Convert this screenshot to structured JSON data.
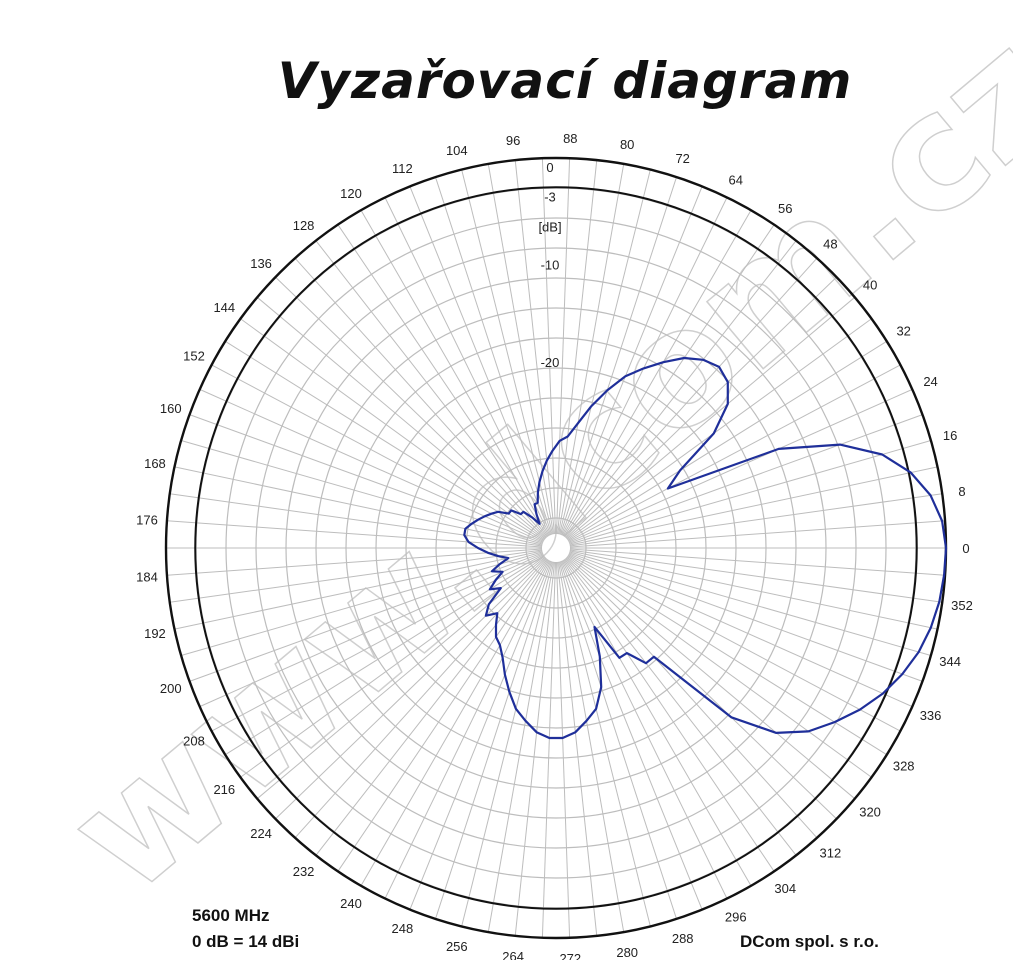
{
  "chart_data": {
    "type": "polar",
    "title": "Vyzařovací diagram",
    "radial_unit": "[dB]",
    "radial_ticks": [
      "0",
      "-3",
      "-10",
      "-20"
    ],
    "radial_range": [
      -40,
      0
    ],
    "angle_ticks": [
      "0",
      "8",
      "16",
      "24",
      "32",
      "40",
      "48",
      "56",
      "64",
      "72",
      "80",
      "88",
      "96",
      "104",
      "112",
      "120",
      "128",
      "136",
      "144",
      "152",
      "160",
      "168",
      "176",
      "184",
      "192",
      "200",
      "208",
      "216",
      "224",
      "232",
      "240",
      "248",
      "256",
      "264",
      "272",
      "280",
      "288",
      "296",
      "304",
      "312",
      "320",
      "328",
      "336",
      "344",
      "352"
    ],
    "series": [
      {
        "color": "#1f2f9a",
        "angles_deg": [
          0,
          4,
          8,
          12,
          16,
          20,
          24,
          28,
          32,
          36,
          40,
          44,
          48,
          52,
          56,
          60,
          64,
          68,
          72,
          76,
          80,
          84,
          88,
          92,
          96,
          100,
          104,
          108,
          112,
          116,
          120,
          124,
          128,
          132,
          136,
          140,
          144,
          148,
          152,
          156,
          160,
          164,
          168,
          172,
          176,
          180,
          184,
          188,
          192,
          196,
          200,
          204,
          208,
          212,
          216,
          220,
          224,
          228,
          232,
          236,
          240,
          244,
          248,
          252,
          256,
          260,
          264,
          268,
          272,
          276,
          280,
          284,
          288,
          292,
          296,
          300,
          304,
          308,
          312,
          316,
          320,
          324,
          328,
          332,
          336,
          340,
          344,
          348,
          352,
          356
        ],
        "values_db": [
          0,
          -0.3,
          -1.2,
          -2.8,
          -5.2,
          -9,
          -15,
          -27,
          -25,
          -20,
          -17,
          -15.5,
          -15,
          -15.5,
          -16.5,
          -18,
          -19.5,
          -21,
          -23,
          -25,
          -27,
          -28.5,
          -29,
          -30,
          -31,
          -32,
          -33,
          -34,
          -35,
          -35,
          -36,
          -37,
          -36,
          -35,
          -35,
          -34,
          -34,
          -33,
          -32.5,
          -32,
          -31.5,
          -31,
          -30.5,
          -30.5,
          -31,
          -32,
          -33,
          -34,
          -35,
          -34,
          -33,
          -34,
          -33,
          -32,
          -33,
          -31,
          -30,
          -31,
          -30,
          -29,
          -28.5,
          -27.5,
          -26,
          -24.5,
          -23,
          -22,
          -21,
          -20.5,
          -20.5,
          -21,
          -22,
          -23,
          -25,
          -28,
          -31,
          -27,
          -27,
          -25,
          -25,
          -15,
          -10.5,
          -8,
          -6.3,
          -4.7,
          -3.3,
          -2.2,
          -1.3,
          -0.7,
          -0.3,
          -0.1
        ]
      }
    ],
    "grid": true
  },
  "notes": {
    "frequency": "5600 MHz",
    "reference": "0 dB = 14 dBi",
    "company": "DCom spol. s r.o."
  },
  "watermark": "www.dcom.cz",
  "colors": {
    "grid": "#bdbdbd",
    "ring": "#111111",
    "trace": "#1f2f9a"
  }
}
